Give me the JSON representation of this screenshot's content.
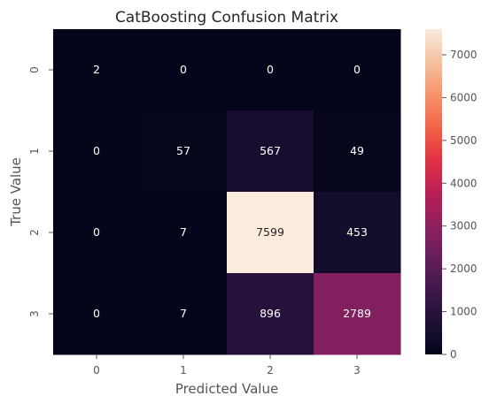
{
  "chart_data": {
    "type": "heatmap",
    "title": "CatBoosting Confusion Matrix",
    "xlabel": "Predicted Value",
    "ylabel": "True Value",
    "x_categories": [
      "0",
      "1",
      "2",
      "3"
    ],
    "y_categories": [
      "0",
      "1",
      "2",
      "3"
    ],
    "values": [
      [
        2,
        0,
        0,
        0
      ],
      [
        0,
        57,
        567,
        49
      ],
      [
        0,
        7,
        7599,
        453
      ],
      [
        0,
        7,
        896,
        2789
      ]
    ],
    "colormap": "rocket",
    "color_range": [
      0,
      7599
    ],
    "colorbar_ticks": [
      0,
      1000,
      2000,
      3000,
      4000,
      5000,
      6000,
      7000
    ],
    "colorbar_tick_labels": [
      "0",
      "1000",
      "2000",
      "3000",
      "4000",
      "5000",
      "6000",
      "7000"
    ],
    "grid": false
  }
}
